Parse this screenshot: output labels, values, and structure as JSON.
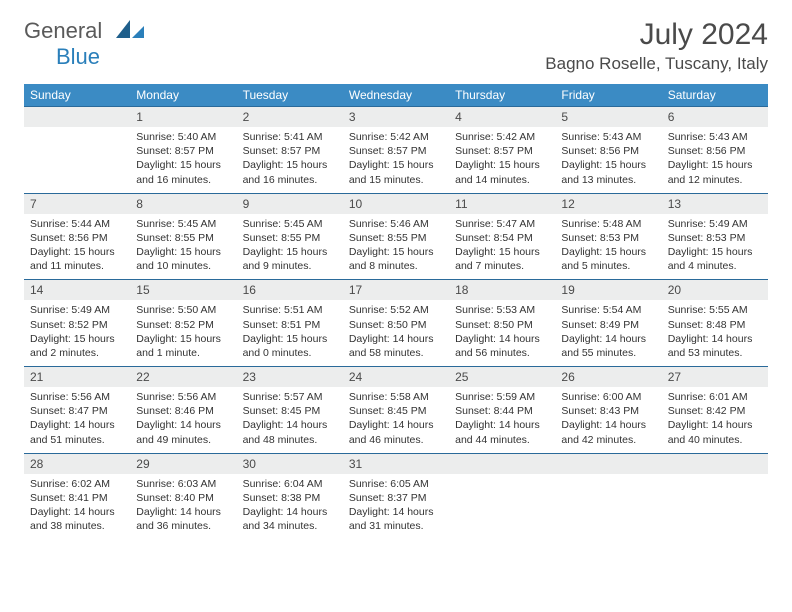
{
  "logo": {
    "general": "General",
    "blue": "Blue"
  },
  "title": "July 2024",
  "location": "Bagno Roselle, Tuscany, Italy",
  "colors": {
    "header_bg": "#3b8bc4",
    "row_border": "#2a6a9a",
    "daynum_bg": "#eceded",
    "text": "#333333",
    "title_text": "#4a4a4a",
    "logo_gray": "#5a5a5a",
    "logo_blue": "#2a7fba"
  },
  "weekdays": [
    "Sunday",
    "Monday",
    "Tuesday",
    "Wednesday",
    "Thursday",
    "Friday",
    "Saturday"
  ],
  "weeks": [
    [
      {
        "day": "",
        "lines": []
      },
      {
        "day": "1",
        "lines": [
          "Sunrise: 5:40 AM",
          "Sunset: 8:57 PM",
          "Daylight: 15 hours and 16 minutes."
        ]
      },
      {
        "day": "2",
        "lines": [
          "Sunrise: 5:41 AM",
          "Sunset: 8:57 PM",
          "Daylight: 15 hours and 16 minutes."
        ]
      },
      {
        "day": "3",
        "lines": [
          "Sunrise: 5:42 AM",
          "Sunset: 8:57 PM",
          "Daylight: 15 hours and 15 minutes."
        ]
      },
      {
        "day": "4",
        "lines": [
          "Sunrise: 5:42 AM",
          "Sunset: 8:57 PM",
          "Daylight: 15 hours and 14 minutes."
        ]
      },
      {
        "day": "5",
        "lines": [
          "Sunrise: 5:43 AM",
          "Sunset: 8:56 PM",
          "Daylight: 15 hours and 13 minutes."
        ]
      },
      {
        "day": "6",
        "lines": [
          "Sunrise: 5:43 AM",
          "Sunset: 8:56 PM",
          "Daylight: 15 hours and 12 minutes."
        ]
      }
    ],
    [
      {
        "day": "7",
        "lines": [
          "Sunrise: 5:44 AM",
          "Sunset: 8:56 PM",
          "Daylight: 15 hours and 11 minutes."
        ]
      },
      {
        "day": "8",
        "lines": [
          "Sunrise: 5:45 AM",
          "Sunset: 8:55 PM",
          "Daylight: 15 hours and 10 minutes."
        ]
      },
      {
        "day": "9",
        "lines": [
          "Sunrise: 5:45 AM",
          "Sunset: 8:55 PM",
          "Daylight: 15 hours and 9 minutes."
        ]
      },
      {
        "day": "10",
        "lines": [
          "Sunrise: 5:46 AM",
          "Sunset: 8:55 PM",
          "Daylight: 15 hours and 8 minutes."
        ]
      },
      {
        "day": "11",
        "lines": [
          "Sunrise: 5:47 AM",
          "Sunset: 8:54 PM",
          "Daylight: 15 hours and 7 minutes."
        ]
      },
      {
        "day": "12",
        "lines": [
          "Sunrise: 5:48 AM",
          "Sunset: 8:53 PM",
          "Daylight: 15 hours and 5 minutes."
        ]
      },
      {
        "day": "13",
        "lines": [
          "Sunrise: 5:49 AM",
          "Sunset: 8:53 PM",
          "Daylight: 15 hours and 4 minutes."
        ]
      }
    ],
    [
      {
        "day": "14",
        "lines": [
          "Sunrise: 5:49 AM",
          "Sunset: 8:52 PM",
          "Daylight: 15 hours and 2 minutes."
        ]
      },
      {
        "day": "15",
        "lines": [
          "Sunrise: 5:50 AM",
          "Sunset: 8:52 PM",
          "Daylight: 15 hours and 1 minute."
        ]
      },
      {
        "day": "16",
        "lines": [
          "Sunrise: 5:51 AM",
          "Sunset: 8:51 PM",
          "Daylight: 15 hours and 0 minutes."
        ]
      },
      {
        "day": "17",
        "lines": [
          "Sunrise: 5:52 AM",
          "Sunset: 8:50 PM",
          "Daylight: 14 hours and 58 minutes."
        ]
      },
      {
        "day": "18",
        "lines": [
          "Sunrise: 5:53 AM",
          "Sunset: 8:50 PM",
          "Daylight: 14 hours and 56 minutes."
        ]
      },
      {
        "day": "19",
        "lines": [
          "Sunrise: 5:54 AM",
          "Sunset: 8:49 PM",
          "Daylight: 14 hours and 55 minutes."
        ]
      },
      {
        "day": "20",
        "lines": [
          "Sunrise: 5:55 AM",
          "Sunset: 8:48 PM",
          "Daylight: 14 hours and 53 minutes."
        ]
      }
    ],
    [
      {
        "day": "21",
        "lines": [
          "Sunrise: 5:56 AM",
          "Sunset: 8:47 PM",
          "Daylight: 14 hours and 51 minutes."
        ]
      },
      {
        "day": "22",
        "lines": [
          "Sunrise: 5:56 AM",
          "Sunset: 8:46 PM",
          "Daylight: 14 hours and 49 minutes."
        ]
      },
      {
        "day": "23",
        "lines": [
          "Sunrise: 5:57 AM",
          "Sunset: 8:45 PM",
          "Daylight: 14 hours and 48 minutes."
        ]
      },
      {
        "day": "24",
        "lines": [
          "Sunrise: 5:58 AM",
          "Sunset: 8:45 PM",
          "Daylight: 14 hours and 46 minutes."
        ]
      },
      {
        "day": "25",
        "lines": [
          "Sunrise: 5:59 AM",
          "Sunset: 8:44 PM",
          "Daylight: 14 hours and 44 minutes."
        ]
      },
      {
        "day": "26",
        "lines": [
          "Sunrise: 6:00 AM",
          "Sunset: 8:43 PM",
          "Daylight: 14 hours and 42 minutes."
        ]
      },
      {
        "day": "27",
        "lines": [
          "Sunrise: 6:01 AM",
          "Sunset: 8:42 PM",
          "Daylight: 14 hours and 40 minutes."
        ]
      }
    ],
    [
      {
        "day": "28",
        "lines": [
          "Sunrise: 6:02 AM",
          "Sunset: 8:41 PM",
          "Daylight: 14 hours and 38 minutes."
        ]
      },
      {
        "day": "29",
        "lines": [
          "Sunrise: 6:03 AM",
          "Sunset: 8:40 PM",
          "Daylight: 14 hours and 36 minutes."
        ]
      },
      {
        "day": "30",
        "lines": [
          "Sunrise: 6:04 AM",
          "Sunset: 8:38 PM",
          "Daylight: 14 hours and 34 minutes."
        ]
      },
      {
        "day": "31",
        "lines": [
          "Sunrise: 6:05 AM",
          "Sunset: 8:37 PM",
          "Daylight: 14 hours and 31 minutes."
        ]
      },
      {
        "day": "",
        "lines": []
      },
      {
        "day": "",
        "lines": []
      },
      {
        "day": "",
        "lines": []
      }
    ]
  ]
}
